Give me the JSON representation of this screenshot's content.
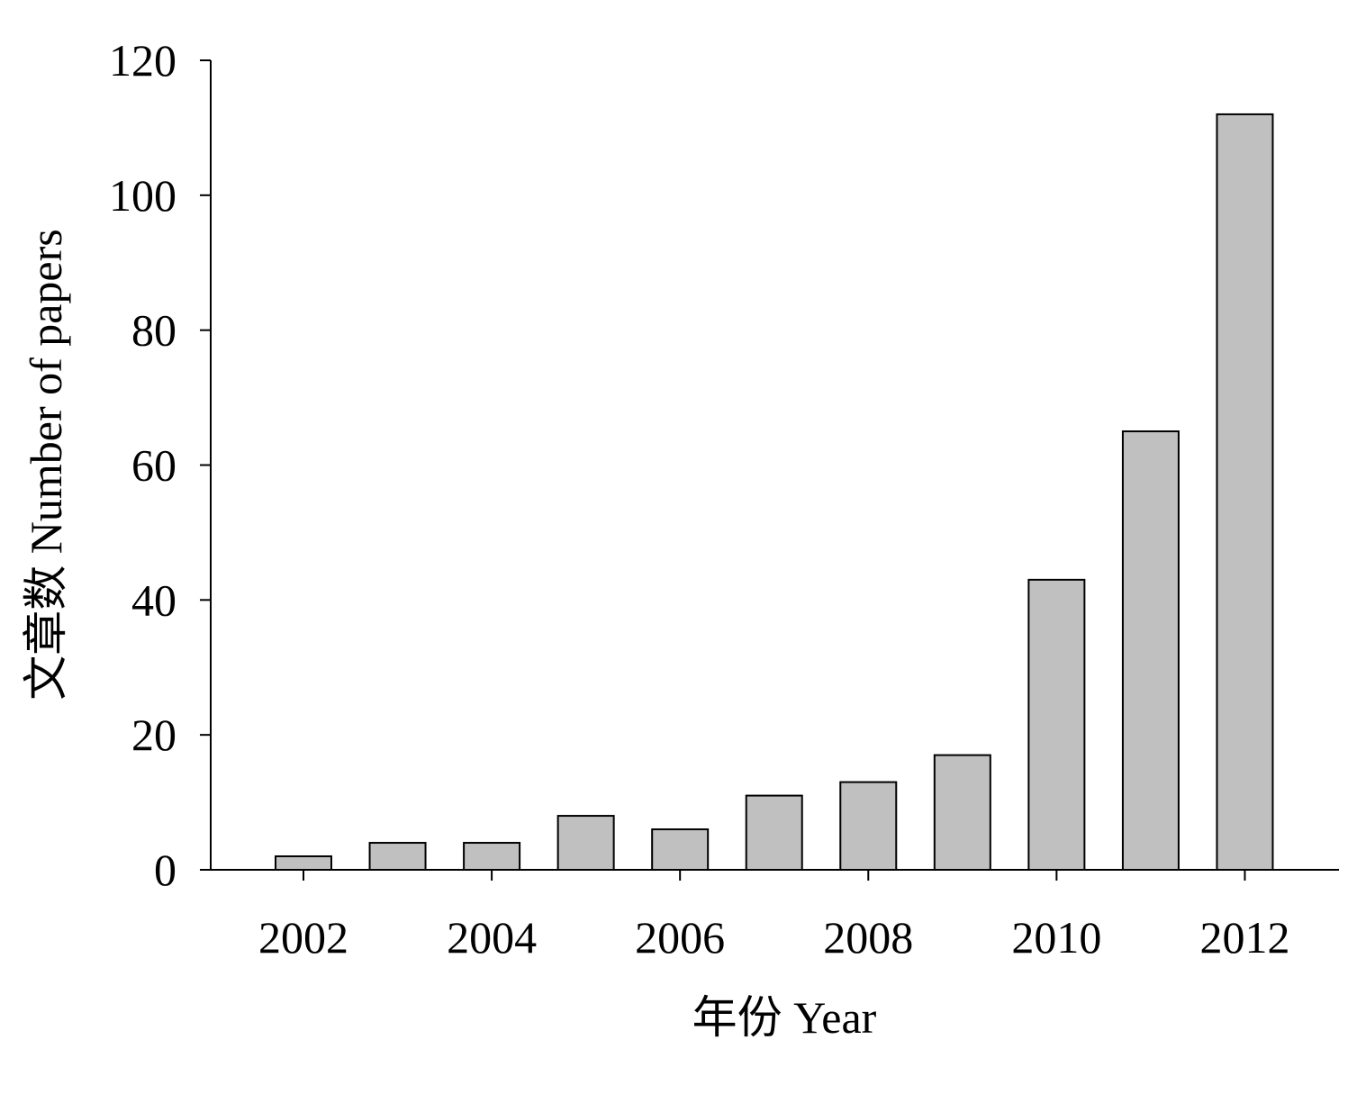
{
  "chart_data": {
    "type": "bar",
    "x": [
      2002,
      2003,
      2004,
      2005,
      2006,
      2007,
      2008,
      2009,
      2010,
      2011,
      2012
    ],
    "values": [
      2,
      4,
      4,
      8,
      6,
      11,
      13,
      17,
      43,
      65,
      112
    ],
    "xlabel": "年份 Year",
    "ylabel": "文章数 Number of papers",
    "ylim": [
      0,
      120
    ],
    "xlim": [
      2000.9,
      2013
    ],
    "yticks": [
      0,
      20,
      40,
      60,
      80,
      100,
      120
    ],
    "xticks": [
      2002,
      2004,
      2006,
      2008,
      2010,
      2012
    ],
    "grid": false,
    "legend": "none",
    "bar_color": "#c0c0c0",
    "bar_edge_color": "#000000"
  }
}
